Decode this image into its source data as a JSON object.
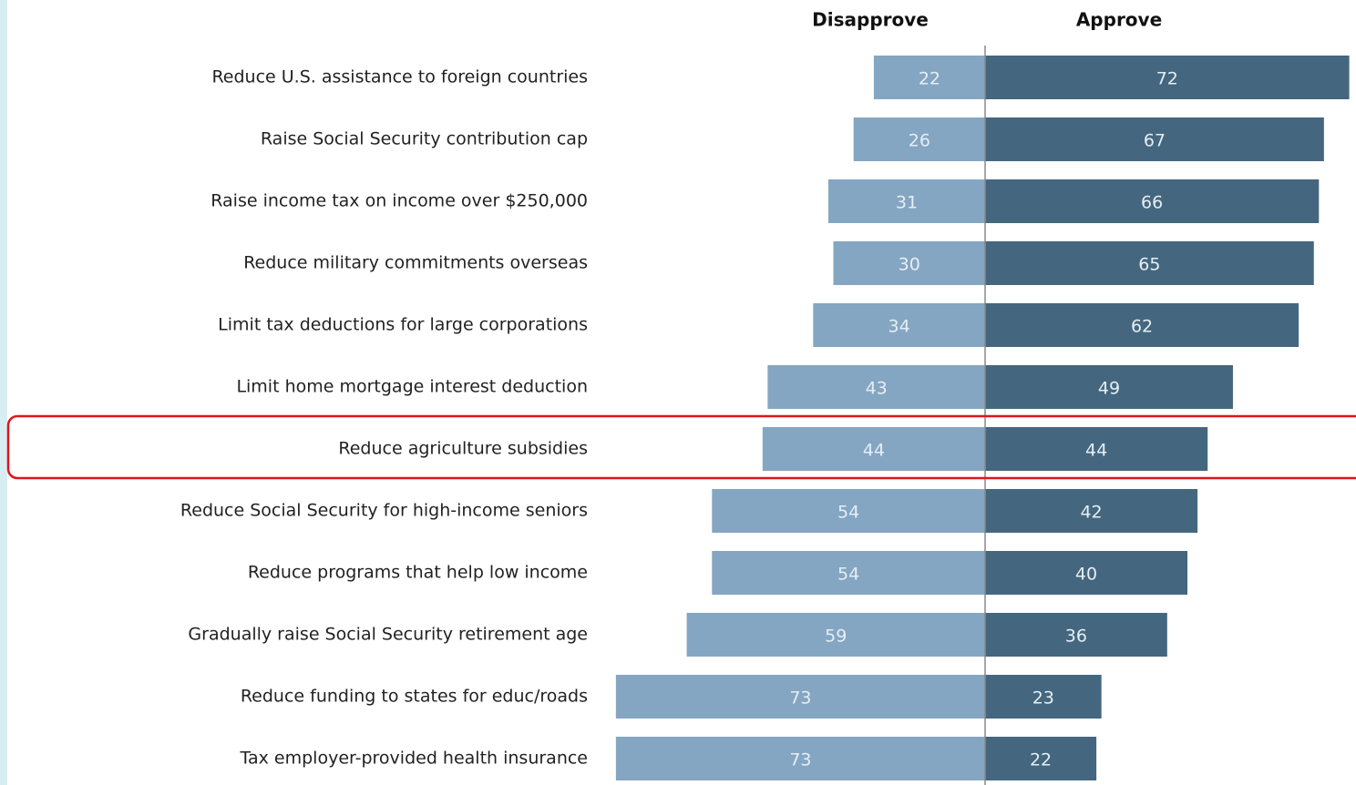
{
  "chart_data": {
    "type": "diverging_bar",
    "categories": [
      "Reduce U.S. assistance to foreign countries",
      "Raise Social Security contribution cap",
      "Raise income tax on income over $250,000",
      "Reduce military commitments overseas",
      "Limit tax deductions for large corporations",
      "Limit home mortgage interest deduction",
      "Reduce agriculture subsidies",
      "Reduce Social Security for high-income seniors",
      "Reduce programs that help low income",
      "Gradually raise Social Security retirement age",
      "Reduce funding to states for educ/roads",
      "Tax employer-provided health insurance"
    ],
    "series": [
      {
        "name": "Disapprove",
        "color": "#84a6c2",
        "values": [
          22,
          26,
          31,
          30,
          34,
          43,
          44,
          54,
          54,
          59,
          73,
          73
        ]
      },
      {
        "name": "Approve",
        "color": "#44677f",
        "values": [
          72,
          67,
          66,
          65,
          62,
          49,
          44,
          42,
          40,
          36,
          23,
          22
        ]
      }
    ]
  }
}
